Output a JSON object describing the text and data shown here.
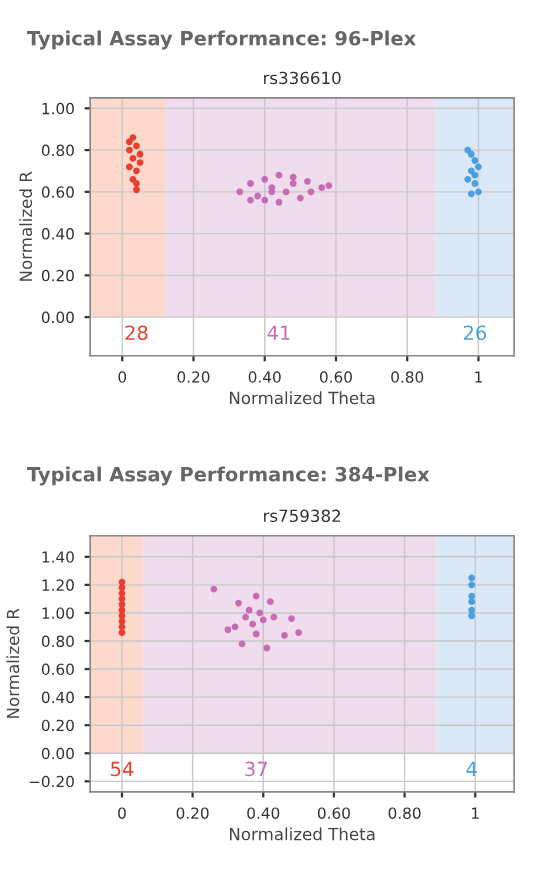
{
  "chart_data": [
    {
      "type": "scatter",
      "title": "Typical Assay Performance: 96-Plex",
      "subtitle": "rs336610",
      "xlabel": "Normalized Theta",
      "ylabel": "Normalized R",
      "xlim": [
        -0.09,
        1.1
      ],
      "ylim": [
        -0.185,
        1.05
      ],
      "xticks": [
        {
          "value": 0,
          "label": "0"
        },
        {
          "value": 0.2,
          "label": "0.20"
        },
        {
          "value": 0.4,
          "label": "0.40"
        },
        {
          "value": 0.6,
          "label": "0.60"
        },
        {
          "value": 0.8,
          "label": "0.80"
        },
        {
          "value": 1,
          "label": "1"
        }
      ],
      "yticks": [
        {
          "value": 0,
          "label": "0.00"
        },
        {
          "value": 0.2,
          "label": "0.20"
        },
        {
          "value": 0.4,
          "label": "0.40"
        },
        {
          "value": 0.6,
          "label": "0.60"
        },
        {
          "value": 0.8,
          "label": "0.80"
        },
        {
          "value": 1,
          "label": "1.00"
        }
      ],
      "grid": true,
      "marker": "circle",
      "bands": [
        {
          "axis": "x",
          "from": -0.09,
          "to": 0.12,
          "color": "#fcd9cc"
        },
        {
          "axis": "x",
          "from": 0.12,
          "to": 0.88,
          "color": "#efdcec"
        },
        {
          "axis": "x",
          "from": 0.88,
          "to": 1.1,
          "color": "#dbe8f8"
        }
      ],
      "series": [
        {
          "color": "#e8402f",
          "x": [
            0.02,
            0.03,
            0.04,
            0.05,
            0.03,
            0.02,
            0.04,
            0.05,
            0.03,
            0.04,
            0.02,
            0.04
          ],
          "values": [
            0.84,
            0.86,
            0.82,
            0.78,
            0.76,
            0.72,
            0.7,
            0.74,
            0.66,
            0.64,
            0.8,
            0.61
          ]
        },
        {
          "color": "#c76bb4",
          "x": [
            0.33,
            0.36,
            0.38,
            0.4,
            0.42,
            0.44,
            0.46,
            0.48,
            0.5,
            0.53,
            0.56,
            0.58,
            0.4,
            0.44,
            0.48,
            0.52,
            0.36,
            0.42
          ],
          "values": [
            0.6,
            0.64,
            0.58,
            0.66,
            0.62,
            0.68,
            0.6,
            0.64,
            0.57,
            0.6,
            0.62,
            0.63,
            0.56,
            0.55,
            0.67,
            0.65,
            0.56,
            0.6
          ]
        },
        {
          "color": "#4a9fdf",
          "x": [
            0.97,
            0.98,
            0.99,
            1.0,
            0.98,
            0.97,
            0.99,
            1.0,
            0.98,
            0.99
          ],
          "values": [
            0.8,
            0.78,
            0.75,
            0.72,
            0.7,
            0.66,
            0.64,
            0.6,
            0.59,
            0.68
          ]
        }
      ],
      "annotations": [
        "28",
        "41",
        "26"
      ]
    },
    {
      "type": "scatter",
      "title": "Typical Assay Performance: 384-Plex",
      "subtitle": "rs759382",
      "xlabel": "Normalized Theta",
      "ylabel": "Normalized R",
      "xlim": [
        -0.09,
        1.11
      ],
      "ylim": [
        -0.275,
        1.55
      ],
      "xticks": [
        {
          "value": 0,
          "label": "0"
        },
        {
          "value": 0.2,
          "label": "0.20"
        },
        {
          "value": 0.4,
          "label": "0.40"
        },
        {
          "value": 0.6,
          "label": "0.60"
        },
        {
          "value": 0.8,
          "label": "0.80"
        },
        {
          "value": 1,
          "label": "1"
        }
      ],
      "yticks": [
        {
          "value": -0.2,
          "label": "−0.20"
        },
        {
          "value": 0,
          "label": "0.00"
        },
        {
          "value": 0.2,
          "label": "0.20"
        },
        {
          "value": 0.4,
          "label": "0.40"
        },
        {
          "value": 0.6,
          "label": "0.60"
        },
        {
          "value": 0.8,
          "label": "0.80"
        },
        {
          "value": 1,
          "label": "1.00"
        },
        {
          "value": 1.2,
          "label": "1.20"
        },
        {
          "value": 1.4,
          "label": "1.40"
        }
      ],
      "grid": true,
      "marker": "circle",
      "bands": [
        {
          "axis": "x",
          "from": -0.09,
          "to": 0.06,
          "color": "#fcd9cc"
        },
        {
          "axis": "x",
          "from": 0.06,
          "to": 0.89,
          "color": "#efdcec"
        },
        {
          "axis": "x",
          "from": 0.89,
          "to": 1.11,
          "color": "#dbe8f8"
        }
      ],
      "series": [
        {
          "color": "#e8402f",
          "x": [
            0.0,
            0.0,
            0.0,
            0.0,
            0.0,
            0.0,
            0.0,
            0.0,
            0.0,
            0.0
          ],
          "values": [
            1.22,
            1.18,
            1.14,
            1.1,
            1.06,
            1.02,
            0.98,
            0.94,
            0.9,
            0.86
          ]
        },
        {
          "color": "#c76bb4",
          "x": [
            0.26,
            0.33,
            0.38,
            0.42,
            0.35,
            0.4,
            0.43,
            0.3,
            0.38,
            0.34,
            0.41,
            0.46,
            0.5,
            0.48,
            0.37,
            0.32,
            0.39,
            0.36
          ],
          "values": [
            1.17,
            1.07,
            1.12,
            1.08,
            0.97,
            0.95,
            0.97,
            0.88,
            0.85,
            0.78,
            0.75,
            0.84,
            0.86,
            0.96,
            0.92,
            0.9,
            1.0,
            1.02
          ]
        },
        {
          "color": "#4a9fdf",
          "x": [
            0.99,
            0.99,
            0.99,
            0.99,
            0.99,
            0.99
          ],
          "values": [
            1.25,
            1.2,
            1.12,
            1.08,
            1.02,
            0.98
          ]
        }
      ],
      "annotations": [
        "54",
        "37",
        "4"
      ]
    }
  ]
}
